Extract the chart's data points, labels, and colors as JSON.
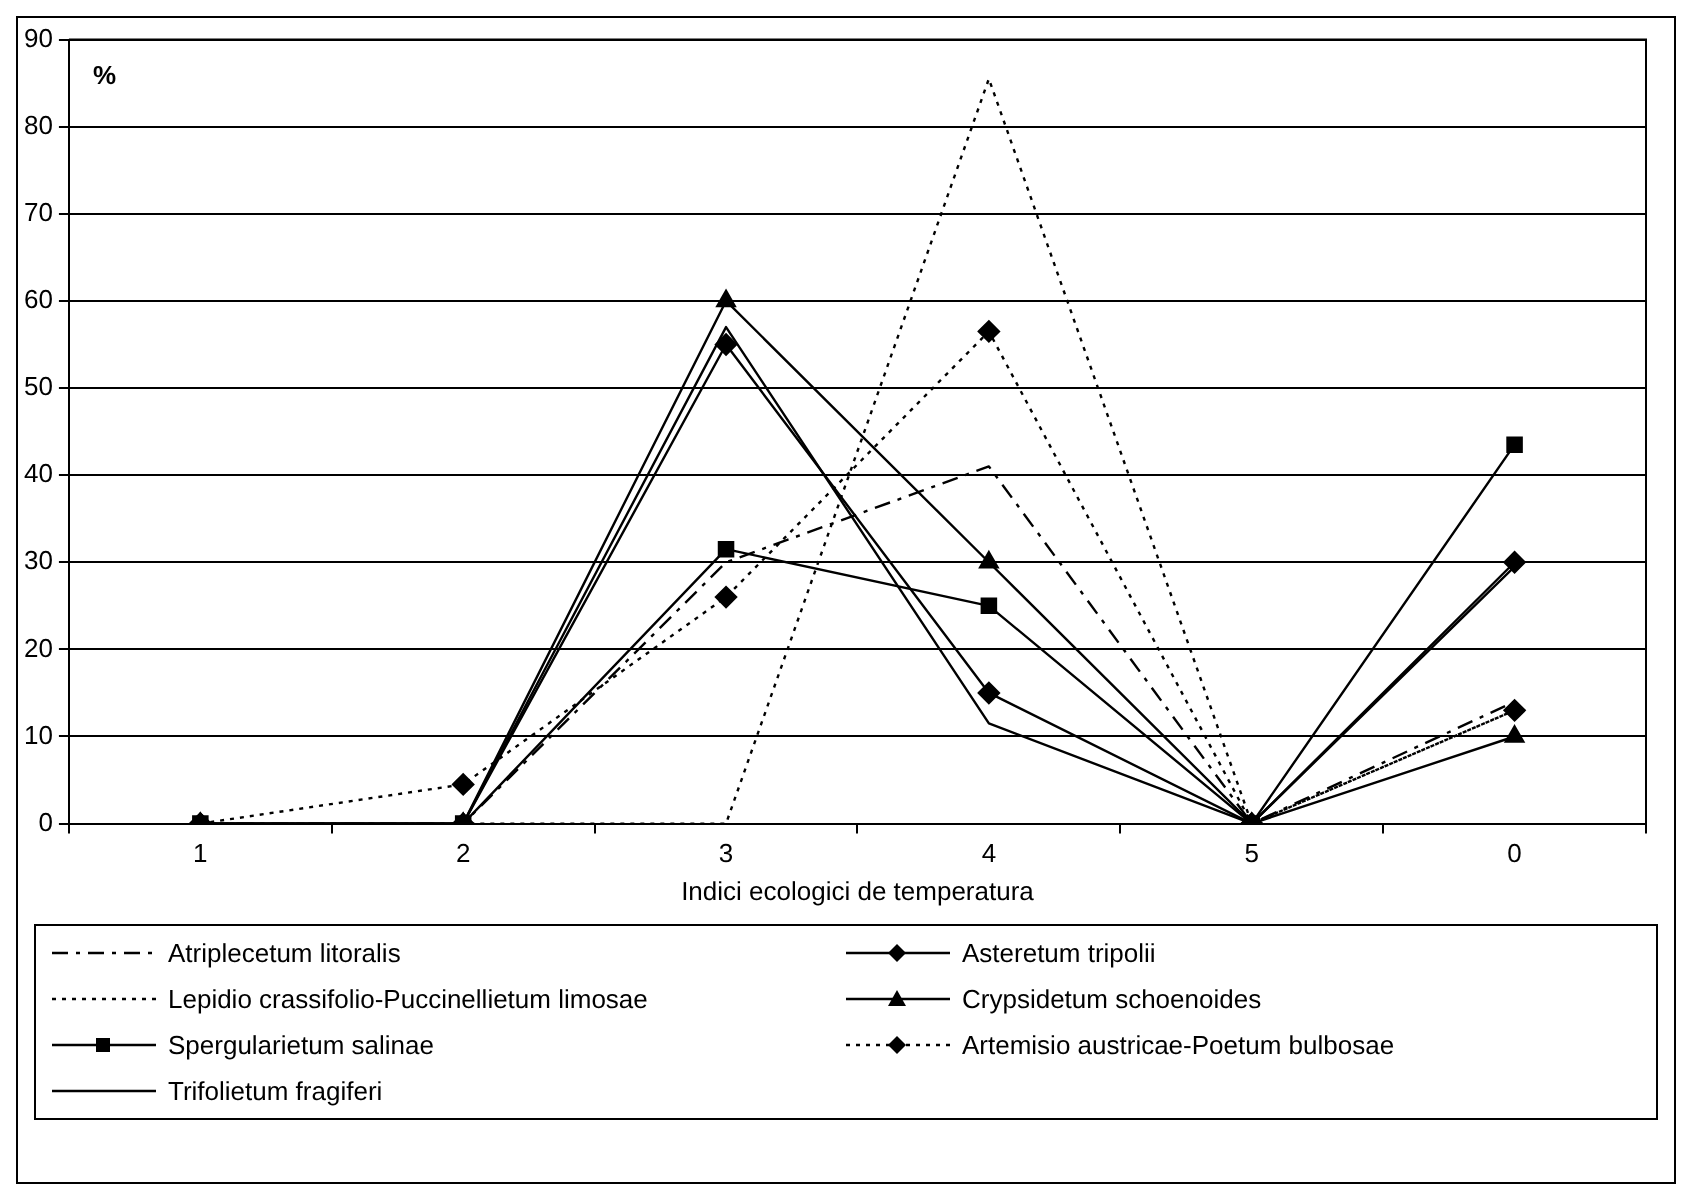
{
  "chart_data": {
    "type": "line",
    "xlabel": "Indici ecologici de temperatura",
    "ylabel": "%",
    "categories": [
      "1",
      "2",
      "3",
      "4",
      "5",
      "0"
    ],
    "ylim": [
      0,
      90
    ],
    "yticks": [
      0,
      10,
      20,
      30,
      40,
      50,
      60,
      70,
      80,
      90
    ],
    "grid": "y",
    "legend": "bottom",
    "series": [
      {
        "name": "Atriplecetum litoralis",
        "color": "#000000",
        "line_style": "dashed",
        "values": [
          0,
          0,
          30,
          41,
          0,
          14
        ]
      },
      {
        "name": "Asteretum tripolii",
        "color": "#000000",
        "line_style": "solid",
        "marker": "diamond",
        "values": [
          0,
          0,
          55,
          15,
          0,
          30
        ]
      },
      {
        "name": "Lepidio crassifolio-Puccinellietum limosae",
        "color": "#000000",
        "line_style": "dotted",
        "values": [
          0,
          0,
          0,
          85.5,
          0,
          13
        ]
      },
      {
        "name": "Crypsidetum schoenoides",
        "color": "#000000",
        "line_style": "solid",
        "marker": "triangle",
        "values": [
          0,
          0,
          60,
          30,
          0,
          10
        ]
      },
      {
        "name": "Spergularietum salinae",
        "color": "#000000",
        "line_style": "solid",
        "marker": "square",
        "values": [
          0,
          0,
          31.5,
          25,
          0,
          43.5
        ]
      },
      {
        "name": "Artemisio austricae-Poetum bulbosae",
        "color": "#000000",
        "line_style": "dotted",
        "marker": "diamond",
        "values": [
          0,
          4.5,
          26,
          56.5,
          0,
          13
        ]
      },
      {
        "name": "Trifolietum fragiferi",
        "color": "#000000",
        "line_style": "solid",
        "values": [
          0,
          0,
          57,
          11.5,
          0,
          29.5
        ]
      }
    ]
  }
}
